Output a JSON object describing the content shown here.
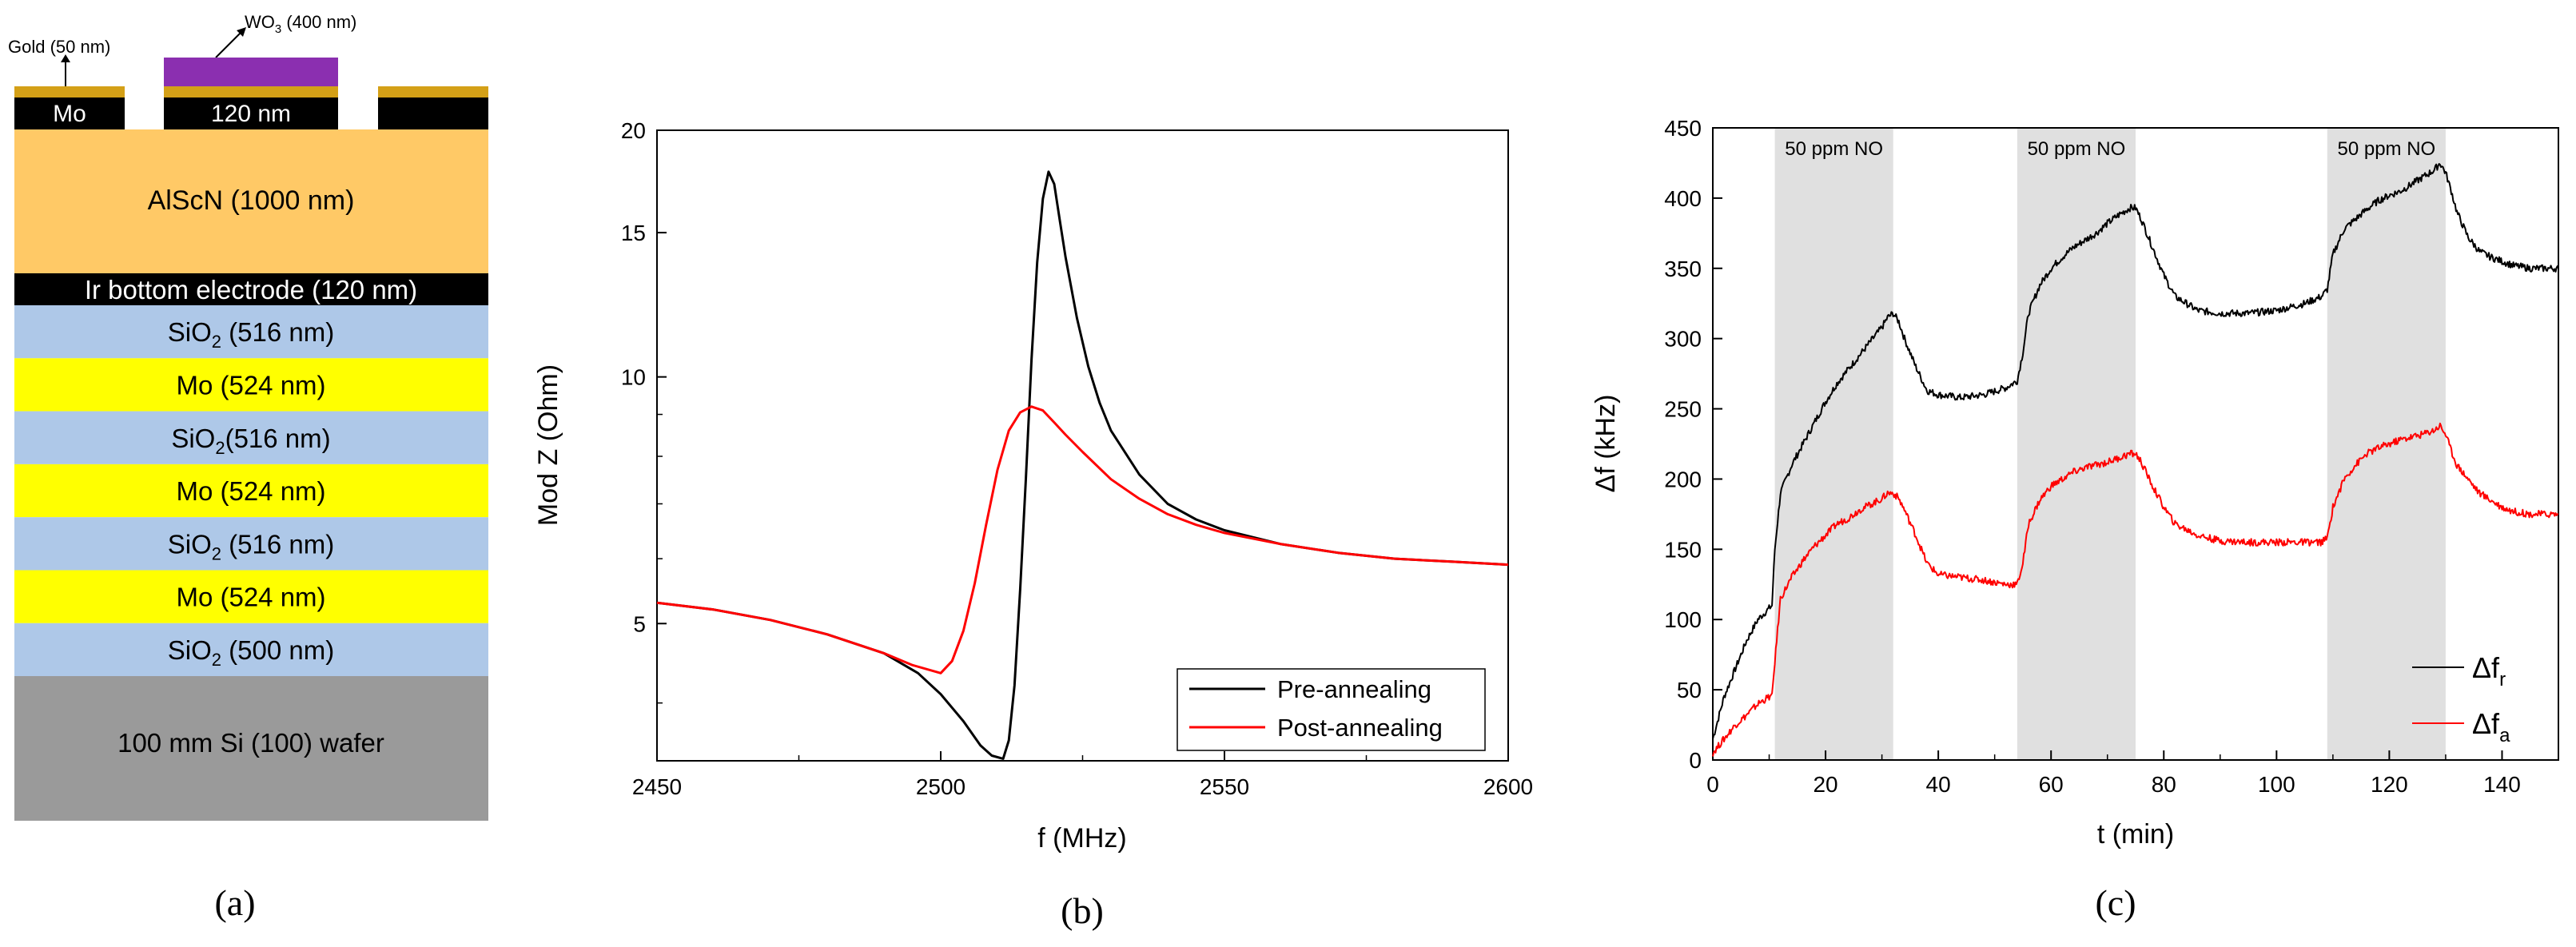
{
  "panels": {
    "a": {
      "label": "(a)"
    },
    "b": {
      "label": "(b)"
    },
    "c": {
      "label": "(c)"
    }
  },
  "stack": {
    "gold_label": "Gold (50 nm)",
    "wo3_label": "WO",
    "wo3_sub": "3",
    "wo3_suffix": " (400 nm)",
    "mo_electrode": "Mo",
    "electrode_thickness": "120 nm",
    "alscn": "AlScN (1000 nm)",
    "ir_electrode": "Ir bottom electrode (120 nm)",
    "layers": [
      {
        "pre": "SiO",
        "sub": "2",
        "post": " (516 nm)",
        "color": "#aec8e8"
      },
      {
        "pre": "Mo (524 nm)",
        "sub": "",
        "post": "",
        "color": "#ffff00"
      },
      {
        "pre": "SiO",
        "sub": "2",
        "post": "(516 nm)",
        "color": "#aec8e8"
      },
      {
        "pre": "Mo (524 nm)",
        "sub": "",
        "post": "",
        "color": "#ffff00"
      },
      {
        "pre": "SiO",
        "sub": "2",
        "post": " (516 nm)",
        "color": "#aec8e8"
      },
      {
        "pre": "Mo (524 nm)",
        "sub": "",
        "post": "",
        "color": "#ffff00"
      },
      {
        "pre": "SiO",
        "sub": "2",
        "post": " (500 nm)",
        "color": "#aec8e8"
      }
    ],
    "wafer": "100 mm Si (100) wafer",
    "colors": {
      "gold": "#d4a017",
      "wo3": "#8b2fb0",
      "alscn": "#ffc966",
      "black": "#000000",
      "wafer": "#9a9a9a"
    }
  },
  "chart_data": [
    {
      "id": "b",
      "type": "line",
      "title": "",
      "xlabel": "f (MHz)",
      "ylabel": "Mod Z (Ohm)",
      "yscale": "log",
      "xlim": [
        2450,
        2600
      ],
      "ylim": [
        3.4,
        20
      ],
      "xticks": [
        2450,
        2500,
        2550,
        2600
      ],
      "ytick_labels": [
        5,
        10,
        15,
        20
      ],
      "legend_position": "bottom-right",
      "series": [
        {
          "name": "Pre-annealing",
          "color": "#000000",
          "x": [
            2450,
            2460,
            2470,
            2480,
            2490,
            2496,
            2500,
            2504,
            2507,
            2509,
            2511,
            2512,
            2513,
            2514,
            2515,
            2516,
            2517,
            2518,
            2519,
            2520,
            2521,
            2522,
            2524,
            2526,
            2528,
            2530,
            2535,
            2540,
            2545,
            2550,
            2560,
            2570,
            2580,
            2590,
            2600
          ],
          "y": [
            5.3,
            5.2,
            5.05,
            4.85,
            4.6,
            4.35,
            4.1,
            3.8,
            3.55,
            3.45,
            3.42,
            3.6,
            4.2,
            5.5,
            7.5,
            10.5,
            13.8,
            16.5,
            17.8,
            17.2,
            15.5,
            14.0,
            11.8,
            10.3,
            9.3,
            8.6,
            7.6,
            7.0,
            6.7,
            6.5,
            6.25,
            6.1,
            6.0,
            5.95,
            5.9
          ]
        },
        {
          "name": "Post-annealing",
          "color": "#ff0000",
          "x": [
            2450,
            2460,
            2470,
            2480,
            2490,
            2495,
            2500,
            2502,
            2504,
            2506,
            2508,
            2510,
            2512,
            2514,
            2516,
            2518,
            2520,
            2522,
            2525,
            2530,
            2535,
            2540,
            2545,
            2550,
            2560,
            2570,
            2580,
            2590,
            2600
          ],
          "y": [
            5.3,
            5.2,
            5.05,
            4.85,
            4.6,
            4.45,
            4.35,
            4.5,
            4.9,
            5.6,
            6.6,
            7.7,
            8.6,
            9.05,
            9.2,
            9.1,
            8.8,
            8.5,
            8.1,
            7.5,
            7.1,
            6.8,
            6.6,
            6.45,
            6.25,
            6.1,
            6.0,
            5.95,
            5.9
          ]
        }
      ]
    },
    {
      "id": "c",
      "type": "line",
      "title": "",
      "xlabel": "t (min)",
      "ylabel": "Δf (kHz)",
      "xlim": [
        0,
        150
      ],
      "ylim": [
        0,
        450
      ],
      "xticks": [
        0,
        20,
        40,
        60,
        80,
        100,
        120,
        140
      ],
      "yticks": [
        0,
        50,
        100,
        150,
        200,
        250,
        300,
        350,
        400,
        450
      ],
      "shaded_regions": [
        {
          "x0": 11,
          "x1": 32,
          "label": "50 ppm NO"
        },
        {
          "x0": 54,
          "x1": 75,
          "label": "50 ppm NO"
        },
        {
          "x0": 109,
          "x1": 130,
          "label": "50 ppm NO"
        }
      ],
      "legend_position": "bottom-right",
      "series": [
        {
          "name": "Δf",
          "sub": "r",
          "color": "#000000",
          "x": [
            0,
            2,
            4,
            6,
            8,
            10,
            10.5,
            11,
            12,
            14,
            16,
            18,
            20,
            22,
            24,
            26,
            28,
            30,
            31,
            32,
            33,
            34,
            36,
            38,
            40,
            44,
            48,
            52,
            54,
            55,
            56,
            58,
            60,
            62,
            64,
            66,
            68,
            70,
            72,
            74,
            75,
            76,
            78,
            80,
            82,
            86,
            90,
            95,
            100,
            105,
            108,
            109,
            110,
            112,
            114,
            116,
            118,
            120,
            122,
            124,
            126,
            128,
            129,
            130,
            131,
            132,
            134,
            136,
            138,
            140,
            142,
            145,
            148,
            150
          ],
          "y": [
            15,
            45,
            65,
            85,
            100,
            108,
            110,
            150,
            190,
            210,
            225,
            240,
            255,
            268,
            278,
            288,
            298,
            308,
            315,
            318,
            312,
            300,
            280,
            263,
            260,
            258,
            260,
            265,
            270,
            290,
            318,
            338,
            350,
            358,
            365,
            370,
            375,
            382,
            388,
            393,
            393,
            385,
            365,
            345,
            330,
            320,
            318,
            318,
            320,
            325,
            330,
            335,
            360,
            378,
            385,
            392,
            398,
            402,
            405,
            410,
            415,
            420,
            425,
            418,
            405,
            390,
            372,
            362,
            358,
            355,
            352,
            350,
            350,
            350
          ]
        },
        {
          "name": "Δf",
          "sub": "a",
          "color": "#ff0000",
          "x": [
            0,
            2,
            4,
            6,
            8,
            10,
            10.5,
            11,
            12,
            14,
            16,
            18,
            20,
            22,
            24,
            26,
            28,
            30,
            31,
            32,
            33,
            34,
            36,
            38,
            40,
            44,
            48,
            52,
            54,
            55,
            56,
            58,
            60,
            62,
            64,
            66,
            68,
            70,
            72,
            74,
            75,
            76,
            78,
            80,
            82,
            86,
            90,
            95,
            100,
            105,
            108,
            109,
            110,
            112,
            114,
            116,
            118,
            120,
            122,
            124,
            126,
            128,
            129,
            130,
            131,
            132,
            134,
            136,
            138,
            140,
            142,
            145,
            148,
            150
          ],
          "y": [
            5,
            15,
            25,
            32,
            40,
            45,
            45,
            70,
            115,
            130,
            142,
            152,
            160,
            168,
            172,
            178,
            182,
            186,
            190,
            190,
            186,
            178,
            160,
            140,
            132,
            130,
            128,
            125,
            125,
            140,
            168,
            185,
            195,
            200,
            205,
            208,
            210,
            212,
            215,
            218,
            218,
            212,
            195,
            180,
            168,
            160,
            156,
            155,
            155,
            155,
            155,
            158,
            180,
            200,
            210,
            218,
            222,
            225,
            228,
            230,
            232,
            235,
            238,
            232,
            220,
            210,
            200,
            190,
            185,
            180,
            177,
            175,
            175,
            175
          ]
        }
      ]
    }
  ]
}
